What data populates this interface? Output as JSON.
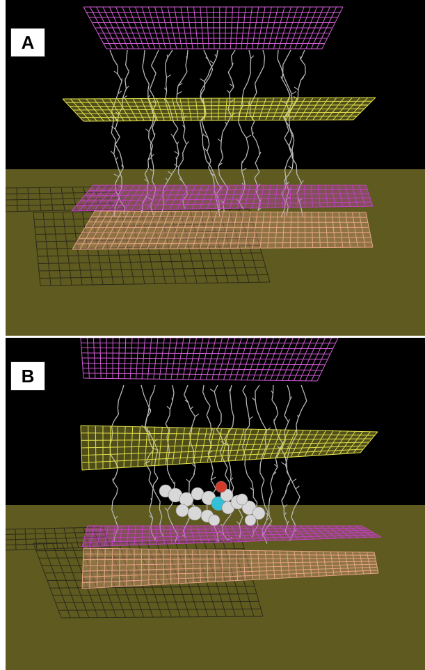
{
  "figure": {
    "panels": [
      {
        "id": "panel-a",
        "label": "A"
      },
      {
        "id": "panel-b",
        "label": "B"
      }
    ],
    "colors": {
      "background": "#000000",
      "floor": "#5f5a1f",
      "upper_grid": "#d25ed6",
      "yellow_grid": "#e2e04a",
      "magenta_grid": "#c43fc6",
      "salmon_grid": "#e8a487",
      "shadow_grid": "#2b2a1a",
      "molecule_lines": "#b9b9b9",
      "spacefill_atoms": "#d8d8d8"
    }
  }
}
